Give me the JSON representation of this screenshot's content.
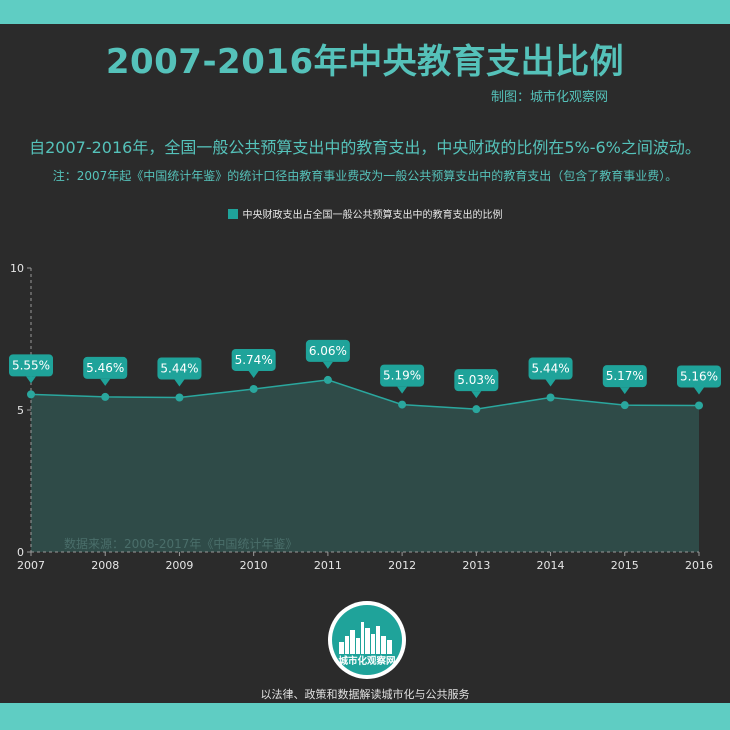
{
  "header": {
    "title": "2007-2016年中央教育支出比例",
    "maker": "制图：城市化观察网",
    "subtitle": "自2007-2016年，全国一般公共预算支出中的教育支出，中央财政的比例在5%-6%之间波动。",
    "note": "注：2007年起《中国统计年鉴》的统计口径由教育事业费改为一般公共预算支出中的教育支出（包含了教育事业费）。"
  },
  "chart_data": {
    "type": "area",
    "series": [
      {
        "name": "中央财政支出占全国一般公共预算支出中的教育支出的比例",
        "values": [
          5.55,
          5.46,
          5.44,
          5.74,
          6.06,
          5.19,
          5.03,
          5.44,
          5.17,
          5.16
        ],
        "labels": [
          "5.55%",
          "5.46%",
          "5.44%",
          "5.74%",
          "6.06%",
          "5.19%",
          "5.03%",
          "5.44%",
          "5.17%",
          "5.16%"
        ]
      }
    ],
    "categories": [
      "2007",
      "2008",
      "2009",
      "2010",
      "2011",
      "2012",
      "2013",
      "2014",
      "2015",
      "2016"
    ],
    "y_ticks": [
      "0",
      "5",
      "10"
    ],
    "ylim": [
      0,
      10
    ],
    "source": "数据来源：2008-2017年《中国统计年鉴》",
    "grid": false,
    "legend_position": "top",
    "colors": {
      "line": "#2aa79e",
      "fill": "#2f4b48",
      "label_bg": "#1fa39a"
    }
  },
  "footer": {
    "logo_text": "城市化观察网",
    "slogan": "以法律、政策和数据解读城市化与公共服务"
  }
}
